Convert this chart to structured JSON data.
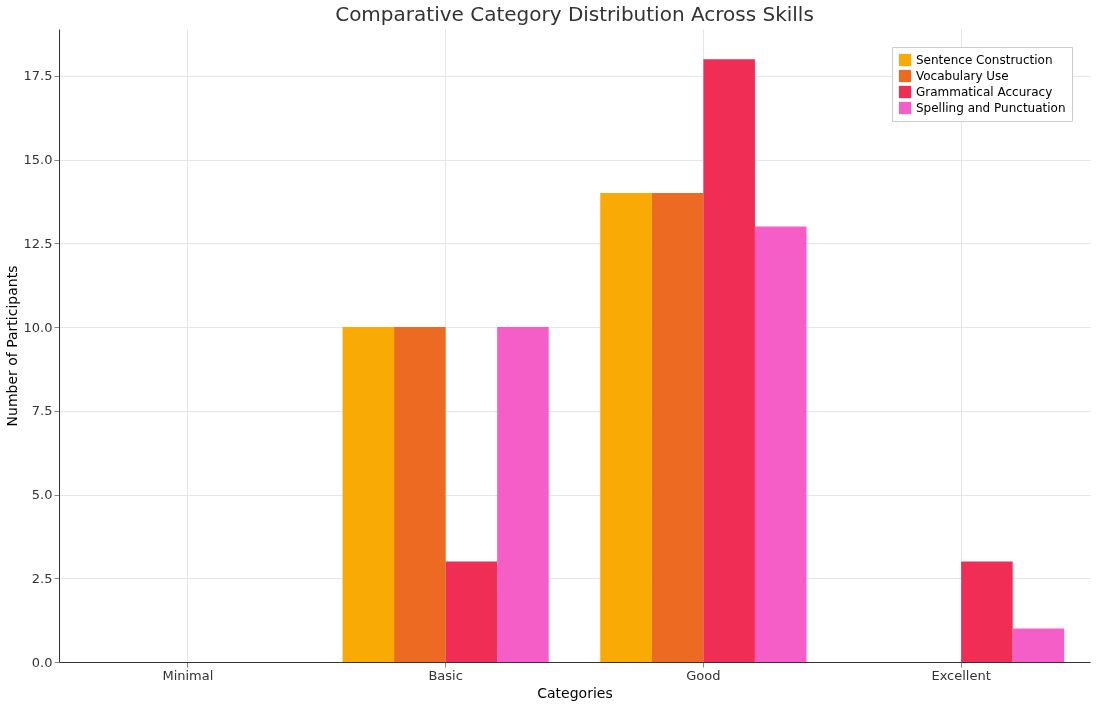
{
  "chart_data": {
    "type": "bar",
    "title": "Comparative Category Distribution Across Skills",
    "xlabel": "Categories",
    "ylabel": "Number of Participants",
    "categories": [
      "Minimal",
      "Basic",
      "Good",
      "Excellent"
    ],
    "series": [
      {
        "name": "Sentence Construction",
        "color": "#f9aa05",
        "values": [
          0,
          10,
          14,
          0
        ]
      },
      {
        "name": "Vocabulary Use",
        "color": "#ec6a22",
        "values": [
          0,
          10,
          14,
          0
        ]
      },
      {
        "name": "Grammatical Accuracy",
        "color": "#ef2d55",
        "values": [
          0,
          3,
          18,
          3
        ]
      },
      {
        "name": "Spelling and Punctuation",
        "color": "#f55ec6",
        "values": [
          0,
          10,
          13,
          1
        ]
      }
    ],
    "ylim": [
      0,
      18.9
    ],
    "yticks": [
      {
        "value": 0,
        "label": "0.0"
      },
      2.5,
      {
        "value": 5,
        "label": "5.0"
      },
      7.5,
      {
        "value": 10,
        "label": "10.0"
      },
      12.5,
      {
        "value": 15,
        "label": "15.0"
      },
      17.5
    ],
    "grid": true,
    "legend": "top right"
  }
}
